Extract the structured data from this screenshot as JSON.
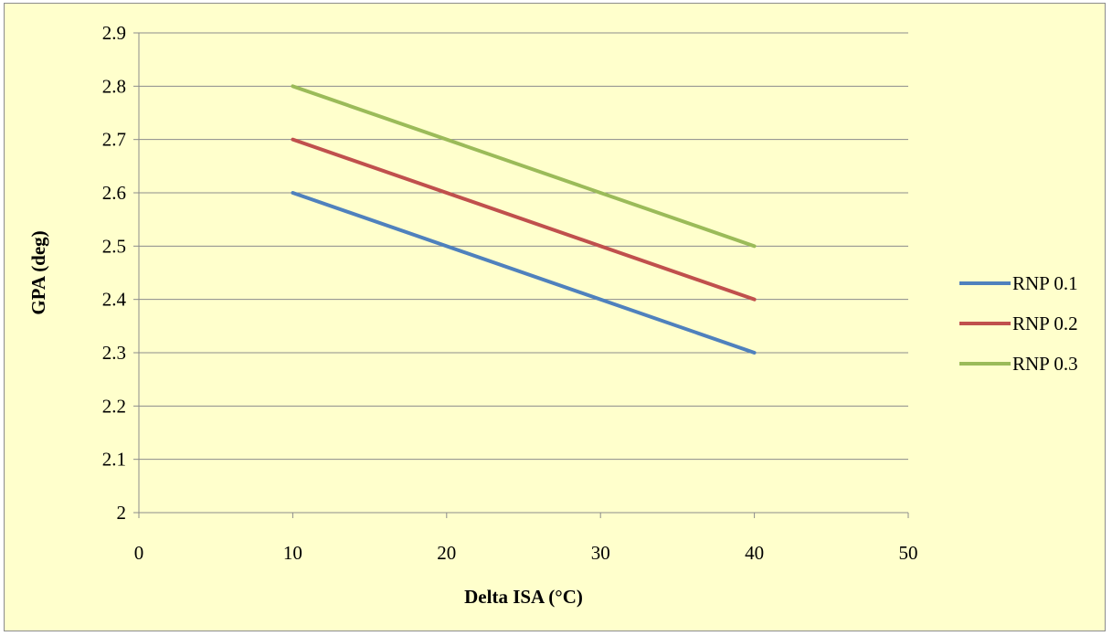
{
  "chart_data": {
    "type": "line",
    "title": "",
    "xlabel": "Delta ISA (°C)",
    "ylabel": "GPA (deg)",
    "xlim": [
      0,
      50
    ],
    "ylim": [
      2,
      2.9
    ],
    "x_ticks": [
      "0",
      "10",
      "20",
      "30",
      "40",
      "50"
    ],
    "y_ticks": [
      "2",
      "2.1",
      "2.2",
      "2.3",
      "2.4",
      "2.5",
      "2.6",
      "2.7",
      "2.8",
      "2.9"
    ],
    "grid": "horizontal",
    "legend_position": "right",
    "x": [
      10,
      40
    ],
    "series": [
      {
        "name": "RNP 0.1",
        "color": "#4f81bd",
        "values": [
          2.6,
          2.3
        ]
      },
      {
        "name": "RNP 0.2",
        "color": "#c0504d",
        "values": [
          2.7,
          2.4
        ]
      },
      {
        "name": "RNP 0.3",
        "color": "#9bbb59",
        "values": [
          2.8,
          2.5
        ]
      }
    ]
  }
}
